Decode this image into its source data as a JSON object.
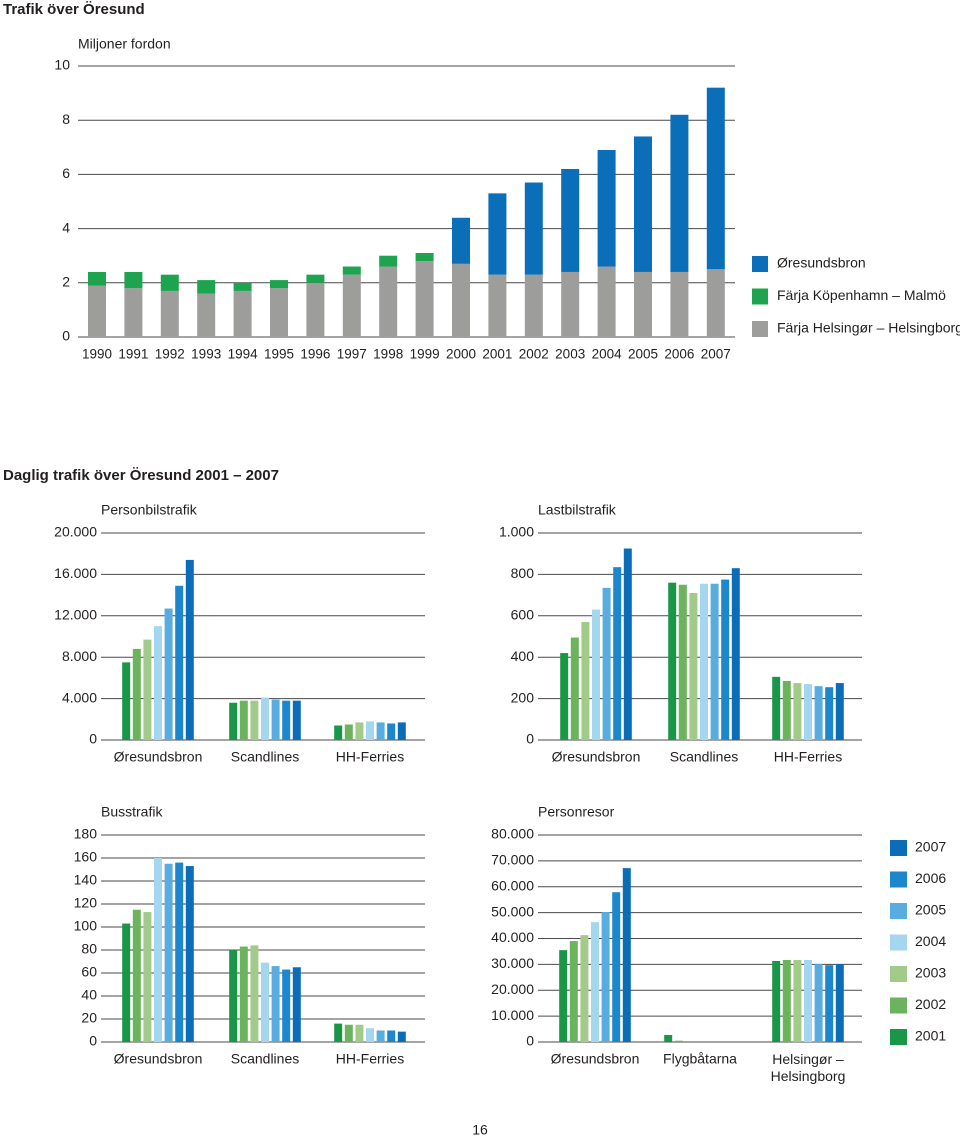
{
  "page_title": "Trafik över Öresund",
  "section_title": "Daglig trafik över Öresund 2001 – 2007",
  "page_number": "16",
  "legend": [
    {
      "name": "2001",
      "color": "#1a9648"
    },
    {
      "name": "2002",
      "color": "#6bb35d"
    },
    {
      "name": "2003",
      "color": "#a2cb8a"
    },
    {
      "name": "2004",
      "color": "#a5d6ef"
    },
    {
      "name": "2005",
      "color": "#58acdf"
    },
    {
      "name": "2006",
      "color": "#1d87cd"
    },
    {
      "name": "2007",
      "color": "#0b6db7"
    }
  ],
  "chart_data": [
    {
      "type": "bar",
      "stacked": true,
      "y_label": "Miljoner fordon",
      "legend": "right",
      "grid": true,
      "categories": [
        "1990",
        "1991",
        "1992",
        "1993",
        "1994",
        "1995",
        "1996",
        "1997",
        "1998",
        "1999",
        "2000",
        "2001",
        "2002",
        "2003",
        "2004",
        "2005",
        "2006",
        "2007"
      ],
      "series": [
        {
          "name": "Färja Helsingør – Helsingborg",
          "color": "#9d9d9c",
          "values": [
            1.9,
            1.8,
            1.7,
            1.6,
            1.7,
            1.8,
            2.0,
            2.3,
            2.6,
            2.8,
            2.7,
            2.3,
            2.3,
            2.4,
            2.6,
            2.4,
            2.4,
            2.5
          ]
        },
        {
          "name": "Färja Köpenhamn – Malmö",
          "color": "#1ea44f",
          "values": [
            0.5,
            0.6,
            0.6,
            0.5,
            0.3,
            0.3,
            0.3,
            0.3,
            0.4,
            0.3,
            0,
            0,
            0,
            0,
            0,
            0,
            0,
            0
          ]
        },
        {
          "name": "Øresundsbron",
          "color": "#0a6eb9",
          "values": [
            0,
            0,
            0,
            0,
            0,
            0,
            0,
            0,
            0,
            0,
            1.7,
            3.0,
            3.4,
            3.8,
            4.3,
            5.0,
            5.8,
            6.7
          ]
        }
      ],
      "ylim": [
        0,
        10
      ],
      "yticks": [
        0,
        2,
        4,
        6,
        8,
        10
      ]
    },
    {
      "type": "bar",
      "title": "Personbilstrafik",
      "grid": true,
      "categories": [
        "Øresundsbron",
        "Scandlines",
        "HH-Ferries"
      ],
      "series": [
        {
          "values": [
            7500,
            3600,
            1400
          ]
        },
        {
          "values": [
            8800,
            3800,
            1500
          ]
        },
        {
          "values": [
            9700,
            3800,
            1700
          ]
        },
        {
          "values": [
            11000,
            4100,
            1800
          ]
        },
        {
          "values": [
            12700,
            3900,
            1700
          ]
        },
        {
          "values": [
            14900,
            3800,
            1600
          ]
        },
        {
          "values": [
            17400,
            3800,
            1700
          ]
        }
      ],
      "ylim": [
        0,
        20000
      ],
      "yticks": [
        0,
        {
          "value": 4000,
          "label": "4.000"
        },
        {
          "value": 8000,
          "label": "8.000"
        },
        {
          "value": 12000,
          "label": "12.000"
        },
        {
          "value": 16000,
          "label": "16.000"
        },
        {
          "value": 20000,
          "label": "20.000"
        }
      ]
    },
    {
      "type": "bar",
      "title": "Lastbilstrafik",
      "grid": true,
      "categories": [
        "Øresundsbron",
        "Scandlines",
        "HH-Ferries"
      ],
      "series": [
        {
          "values": [
            420,
            760,
            305
          ]
        },
        {
          "values": [
            495,
            750,
            285
          ]
        },
        {
          "values": [
            570,
            710,
            275
          ]
        },
        {
          "values": [
            630,
            755,
            270
          ]
        },
        {
          "values": [
            735,
            755,
            260
          ]
        },
        {
          "values": [
            835,
            775,
            255
          ]
        },
        {
          "values": [
            925,
            830,
            275
          ]
        }
      ],
      "ylim": [
        0,
        1000
      ],
      "yticks": [
        0,
        200,
        400,
        600,
        800,
        {
          "value": 1000,
          "label": "1.000"
        }
      ]
    },
    {
      "type": "bar",
      "title": "Busstrafik",
      "grid": true,
      "categories": [
        "Øresundsbron",
        "Scandlines",
        "HH-Ferries"
      ],
      "series": [
        {
          "values": [
            103,
            80,
            16
          ]
        },
        {
          "values": [
            115,
            83,
            15
          ]
        },
        {
          "values": [
            113,
            84,
            15
          ]
        },
        {
          "values": [
            160,
            69,
            12
          ]
        },
        {
          "values": [
            155,
            66,
            10
          ]
        },
        {
          "values": [
            156,
            63,
            10
          ]
        },
        {
          "values": [
            153,
            65,
            9
          ]
        }
      ],
      "ylim": [
        0,
        180
      ],
      "yticks": [
        0,
        20,
        40,
        60,
        80,
        100,
        120,
        140,
        160,
        180
      ]
    },
    {
      "type": "bar",
      "title": "Personresor",
      "grid": true,
      "categories": [
        "Øresundsbron",
        "Flygbåtarna",
        "Helsingør –\nHelsingborg"
      ],
      "series": [
        {
          "values": [
            35500,
            2700,
            31300
          ]
        },
        {
          "values": [
            39000,
            500,
            31700
          ]
        },
        {
          "values": [
            41300,
            0,
            31700
          ]
        },
        {
          "values": [
            46300,
            0,
            31700
          ]
        },
        {
          "values": [
            50200,
            0,
            30100
          ]
        },
        {
          "values": [
            57900,
            0,
            29700
          ]
        },
        {
          "values": [
            67200,
            0,
            30100
          ]
        }
      ],
      "ylim": [
        0,
        80000
      ],
      "yticks": [
        0,
        {
          "value": 10000,
          "label": "10.000"
        },
        {
          "value": 20000,
          "label": "20.000"
        },
        {
          "value": 30000,
          "label": "30.000"
        },
        {
          "value": 40000,
          "label": "40.000"
        },
        {
          "value": 50000,
          "label": "50.000"
        },
        {
          "value": 60000,
          "label": "60.000"
        },
        {
          "value": 70000,
          "label": "70.000"
        },
        {
          "value": 80000,
          "label": "80.000"
        }
      ]
    }
  ]
}
